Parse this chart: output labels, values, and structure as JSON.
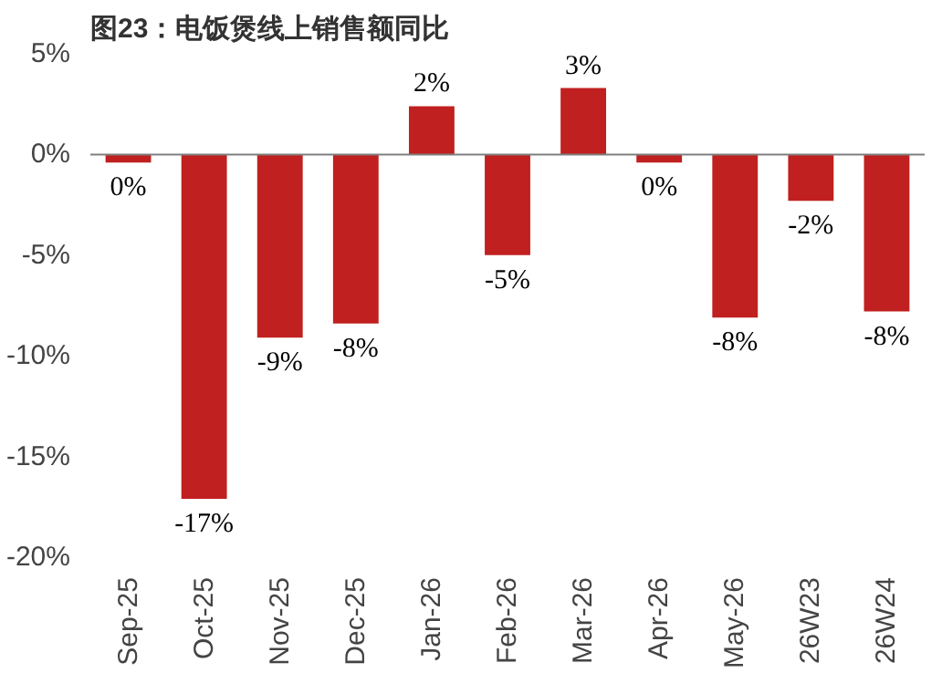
{
  "chart_data": {
    "type": "bar",
    "title": "图23：电饭煲线上销售额同比",
    "categories": [
      "Sep-25",
      "Oct-25",
      "Nov-25",
      "Dec-25",
      "Jan-26",
      "Feb-26",
      "Mar-26",
      "Apr-26",
      "May-26",
      "26W23",
      "26W24"
    ],
    "values": [
      -0.4,
      -17.1,
      -9.1,
      -8.4,
      2.4,
      -5.0,
      3.3,
      -0.4,
      -8.1,
      -2.3,
      -7.8
    ],
    "value_labels": [
      "0%",
      "-17%",
      "-9%",
      "-8%",
      "2%",
      "-5%",
      "3%",
      "0%",
      "-8%",
      "-2%",
      "-8%"
    ],
    "color": "#c0201f",
    "ylim": [
      -20,
      5
    ],
    "yticks": [
      {
        "value": -20,
        "label": "-20%"
      },
      {
        "value": -15,
        "label": "-15%"
      },
      {
        "value": -10,
        "label": "-10%"
      },
      {
        "value": -5,
        "label": "-5%"
      },
      {
        "value": 0,
        "label": "0%"
      },
      {
        "value": 5,
        "label": "5%"
      }
    ],
    "legend": false
  }
}
